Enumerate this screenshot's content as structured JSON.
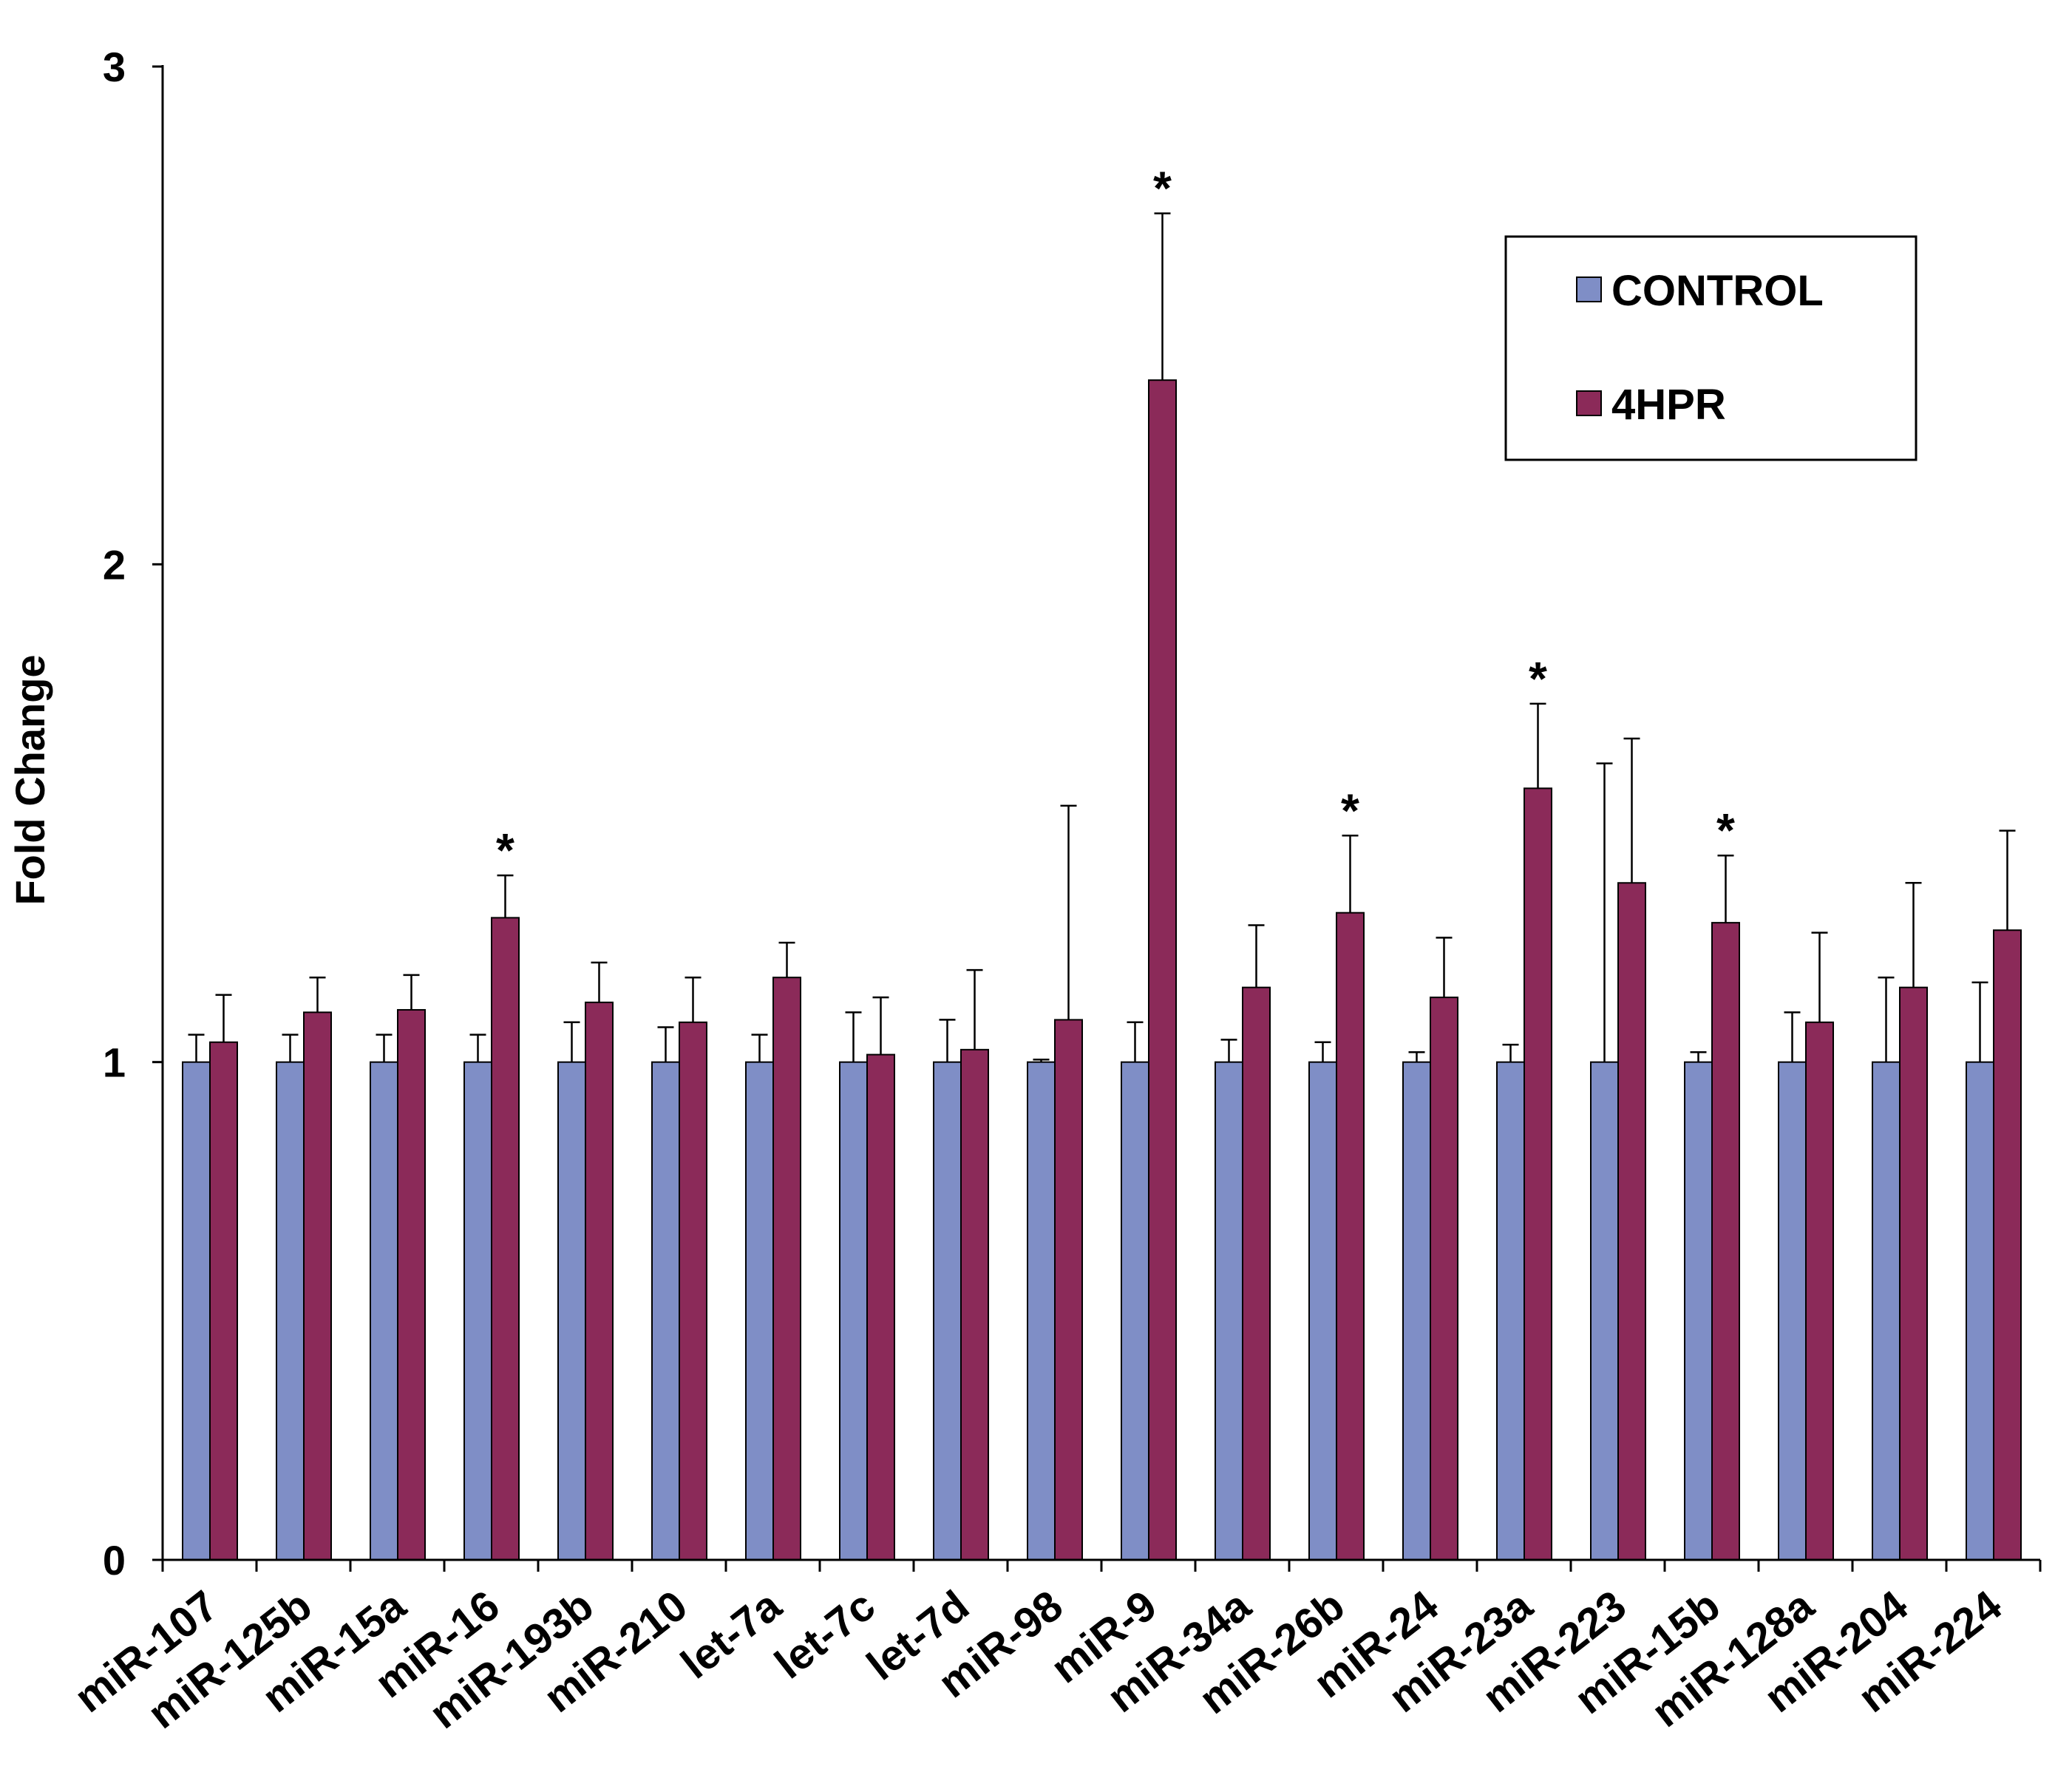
{
  "chart_data": {
    "type": "bar",
    "title": "",
    "xlabel": "",
    "ylabel": "Fold Change",
    "ylim": [
      0,
      3
    ],
    "yticks": [
      0,
      1,
      2,
      3
    ],
    "yticklabels": [
      "0",
      "1",
      "2",
      "3"
    ],
    "grid": false,
    "legend_position": "top-right",
    "categories": [
      "miR-107",
      "miR-125b",
      "miR-15a",
      "miR-16",
      "miR-193b",
      "miR-210",
      "let-7a",
      "let-7c",
      "let-7d",
      "miR-98",
      "miR-9",
      "miR-34a",
      "miR-26b",
      "miR-24",
      "miR-23a",
      "miR-223",
      "miR-15b",
      "miR-128a",
      "miR-204",
      "miR-224"
    ],
    "series": [
      {
        "name": "CONTROL",
        "color": "#7f8ec6",
        "values": [
          1,
          1,
          1,
          1,
          1,
          1,
          1,
          1,
          1,
          1,
          1,
          1,
          1,
          1,
          1,
          1,
          1,
          1,
          1,
          1
        ],
        "errors": [
          0.055,
          0.055,
          0.055,
          0.055,
          0.08,
          0.07,
          0.055,
          0.1,
          0.085,
          0.005,
          0.08,
          0.045,
          0.04,
          0.02,
          0.035,
          0.6,
          0.02,
          0.1,
          0.17,
          0.16
        ]
      },
      {
        "name": "4HPR",
        "color": "#8b2a59",
        "values": [
          1.04,
          1.1,
          1.105,
          1.29,
          1.12,
          1.08,
          1.17,
          1.015,
          1.025,
          1.085,
          2.37,
          1.15,
          1.3,
          1.13,
          1.55,
          1.36,
          1.28,
          1.08,
          1.15,
          1.265
        ],
        "errors": [
          0.095,
          0.07,
          0.07,
          0.085,
          0.08,
          0.09,
          0.07,
          0.115,
          0.16,
          0.43,
          0.335,
          0.125,
          0.155,
          0.12,
          0.17,
          0.29,
          0.135,
          0.18,
          0.21,
          0.2
        ]
      }
    ],
    "significance_marks": [
      {
        "category": "miR-16",
        "label": "*"
      },
      {
        "category": "miR-9",
        "label": "*"
      },
      {
        "category": "miR-26b",
        "label": "*"
      },
      {
        "category": "miR-23a",
        "label": "*"
      },
      {
        "category": "miR-15b",
        "label": "*"
      }
    ]
  }
}
